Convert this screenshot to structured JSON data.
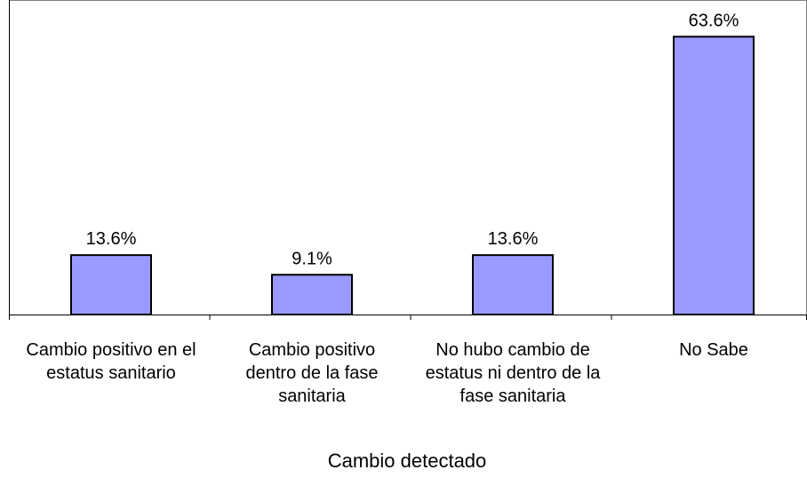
{
  "chart_data": {
    "type": "bar",
    "x_label": "Cambio detectado",
    "categories": [
      "Cambio positivo en el estatus sanitario",
      "Cambio positivo dentro de la fase sanitaria",
      "No hubo cambio de estatus ni dentro de la fase sanitaria",
      "No Sabe"
    ],
    "values": [
      13.6,
      9.1,
      13.6,
      63.6
    ],
    "value_labels": [
      "13.6%",
      "9.1%",
      "13.6%",
      "63.6%"
    ],
    "color": "#9999ff",
    "ylim": [
      0,
      72
    ]
  }
}
